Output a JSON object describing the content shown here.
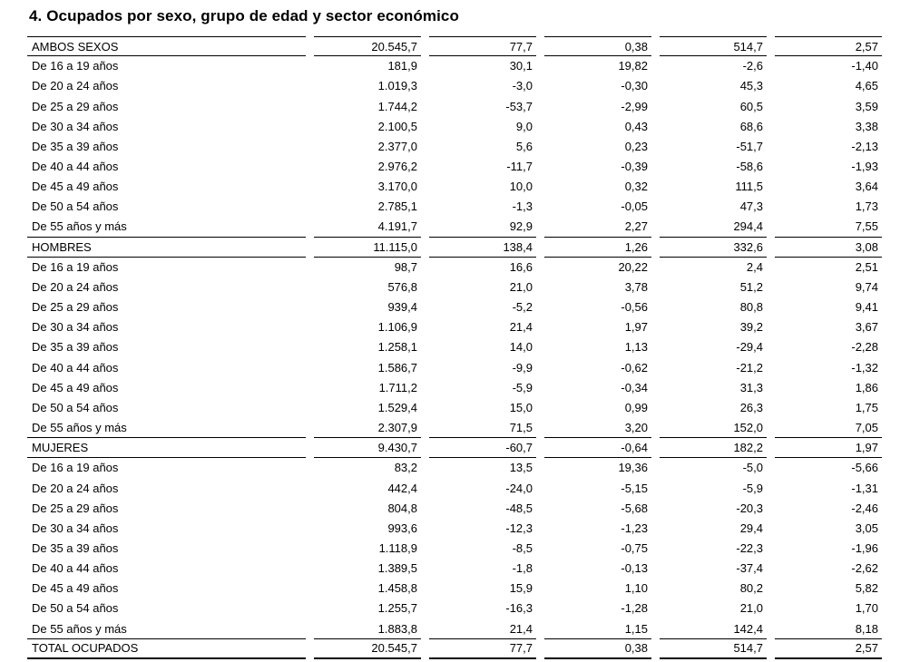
{
  "title": "4. Ocupados por sexo, grupo de edad y sector económico",
  "table": {
    "rows": [
      {
        "label": "AMBOS SEXOS",
        "values": [
          "20.545,7",
          "77,7",
          "0,38",
          "514,7",
          "2,57"
        ],
        "section": true,
        "rule_above": true,
        "rule_below": true
      },
      {
        "label": "De 16 a 19 años",
        "values": [
          "181,9",
          "30,1",
          "19,82",
          "-2,6",
          "-1,40"
        ]
      },
      {
        "label": "De 20 a 24 años",
        "values": [
          "1.019,3",
          "-3,0",
          "-0,30",
          "45,3",
          "4,65"
        ]
      },
      {
        "label": "De 25 a 29 años",
        "values": [
          "1.744,2",
          "-53,7",
          "-2,99",
          "60,5",
          "3,59"
        ]
      },
      {
        "label": "De 30 a 34 años",
        "values": [
          "2.100,5",
          "9,0",
          "0,43",
          "68,6",
          "3,38"
        ]
      },
      {
        "label": "De 35 a 39 años",
        "values": [
          "2.377,0",
          "5,6",
          "0,23",
          "-51,7",
          "-2,13"
        ]
      },
      {
        "label": "De 40 a 44 años",
        "values": [
          "2.976,2",
          "-11,7",
          "-0,39",
          "-58,6",
          "-1,93"
        ]
      },
      {
        "label": "De 45 a 49 años",
        "values": [
          "3.170,0",
          "10,0",
          "0,32",
          "111,5",
          "3,64"
        ]
      },
      {
        "label": "De 50 a 54 años",
        "values": [
          "2.785,1",
          "-1,3",
          "-0,05",
          "47,3",
          "1,73"
        ]
      },
      {
        "label": "De 55 años y más",
        "values": [
          "4.191,7",
          "92,9",
          "2,27",
          "294,4",
          "7,55"
        ],
        "rule_below": true
      },
      {
        "label": "HOMBRES",
        "values": [
          "11.115,0",
          "138,4",
          "1,26",
          "332,6",
          "3,08"
        ],
        "section": true,
        "rule_below": true
      },
      {
        "label": "De 16 a 19 años",
        "values": [
          "98,7",
          "16,6",
          "20,22",
          "2,4",
          "2,51"
        ]
      },
      {
        "label": "De 20 a 24 años",
        "values": [
          "576,8",
          "21,0",
          "3,78",
          "51,2",
          "9,74"
        ]
      },
      {
        "label": "De 25 a 29 años",
        "values": [
          "939,4",
          "-5,2",
          "-0,56",
          "80,8",
          "9,41"
        ]
      },
      {
        "label": "De 30 a 34 años",
        "values": [
          "1.106,9",
          "21,4",
          "1,97",
          "39,2",
          "3,67"
        ]
      },
      {
        "label": "De 35 a 39 años",
        "values": [
          "1.258,1",
          "14,0",
          "1,13",
          "-29,4",
          "-2,28"
        ]
      },
      {
        "label": "De 40 a 44 años",
        "values": [
          "1.586,7",
          "-9,9",
          "-0,62",
          "-21,2",
          "-1,32"
        ]
      },
      {
        "label": "De 45 a 49 años",
        "values": [
          "1.711,2",
          "-5,9",
          "-0,34",
          "31,3",
          "1,86"
        ]
      },
      {
        "label": "De 50 a 54 años",
        "values": [
          "1.529,4",
          "15,0",
          "0,99",
          "26,3",
          "1,75"
        ]
      },
      {
        "label": "De 55 años y más",
        "values": [
          "2.307,9",
          "71,5",
          "3,20",
          "152,0",
          "7,05"
        ],
        "rule_below": true
      },
      {
        "label": "MUJERES",
        "values": [
          "9.430,7",
          "-60,7",
          "-0,64",
          "182,2",
          "1,97"
        ],
        "section": true,
        "rule_below": true
      },
      {
        "label": "De 16 a 19 años",
        "values": [
          "83,2",
          "13,5",
          "19,36",
          "-5,0",
          "-5,66"
        ]
      },
      {
        "label": "De 20 a 24 años",
        "values": [
          "442,4",
          "-24,0",
          "-5,15",
          "-5,9",
          "-1,31"
        ]
      },
      {
        "label": "De 25 a 29 años",
        "values": [
          "804,8",
          "-48,5",
          "-5,68",
          "-20,3",
          "-2,46"
        ]
      },
      {
        "label": "De 30 a 34 años",
        "values": [
          "993,6",
          "-12,3",
          "-1,23",
          "29,4",
          "3,05"
        ]
      },
      {
        "label": "De 35 a 39 años",
        "values": [
          "1.118,9",
          "-8,5",
          "-0,75",
          "-22,3",
          "-1,96"
        ]
      },
      {
        "label": "De 40 a 44 años",
        "values": [
          "1.389,5",
          "-1,8",
          "-0,13",
          "-37,4",
          "-2,62"
        ]
      },
      {
        "label": "De 45 a 49 años",
        "values": [
          "1.458,8",
          "15,9",
          "1,10",
          "80,2",
          "5,82"
        ]
      },
      {
        "label": "De 50 a 54 años",
        "values": [
          "1.255,7",
          "-16,3",
          "-1,28",
          "21,0",
          "1,70"
        ]
      },
      {
        "label": "De 55 años y más",
        "values": [
          "1.883,8",
          "21,4",
          "1,15",
          "142,4",
          "8,18"
        ],
        "rule_below": true
      },
      {
        "label": "TOTAL OCUPADOS",
        "values": [
          "20.545,7",
          "77,7",
          "0,38",
          "514,7",
          "2,57"
        ],
        "section": true,
        "rule_below": true,
        "final": true
      }
    ]
  }
}
